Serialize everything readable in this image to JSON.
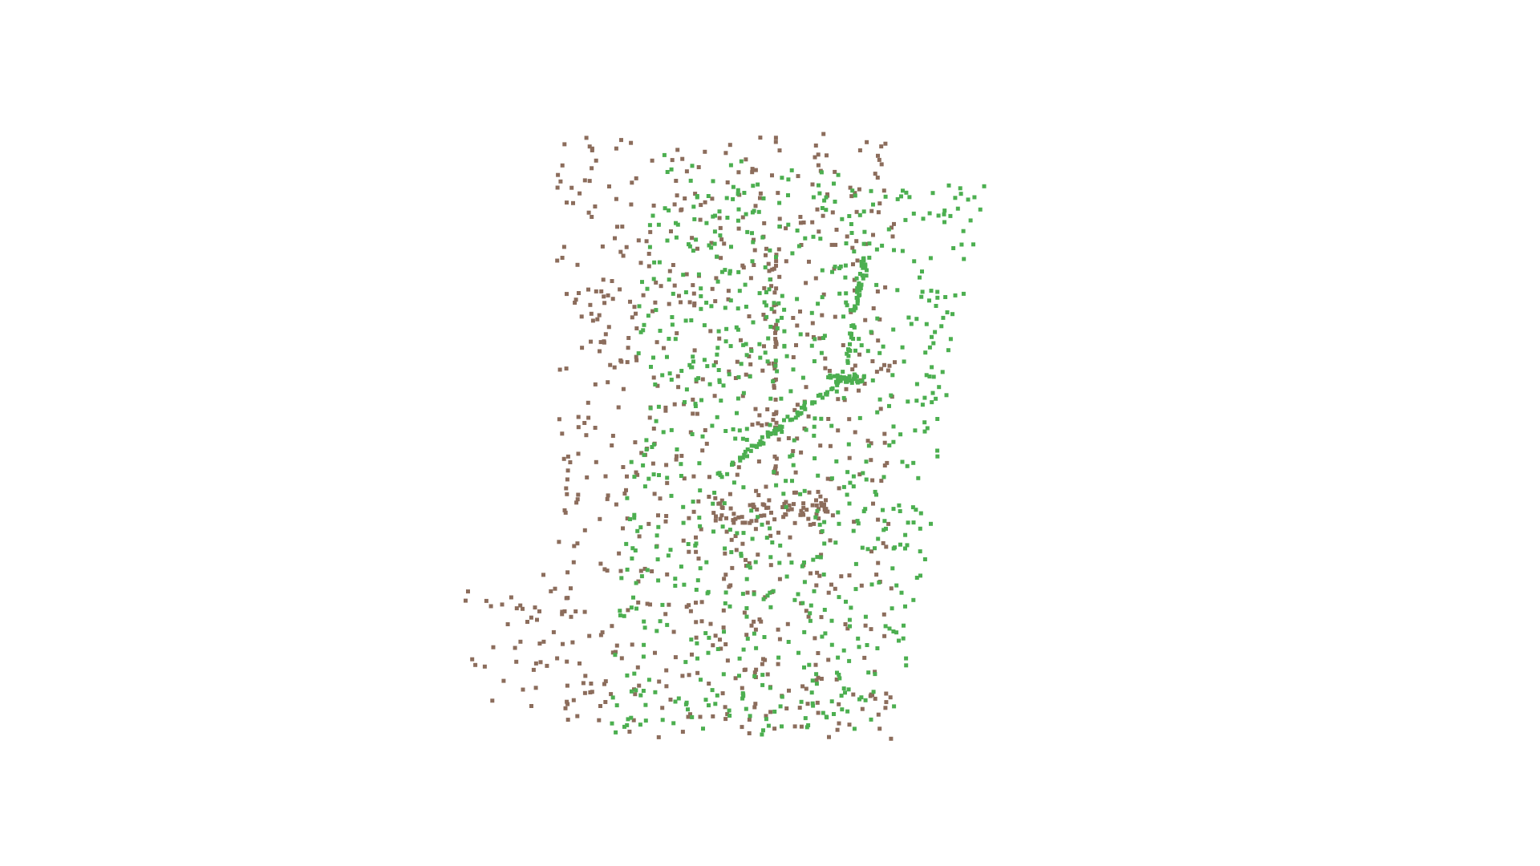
{
  "scene": {
    "background": "#ffffff",
    "point_colors": {
      "brown": "#8c6d5c",
      "green": "#4caf50"
    }
  }
}
